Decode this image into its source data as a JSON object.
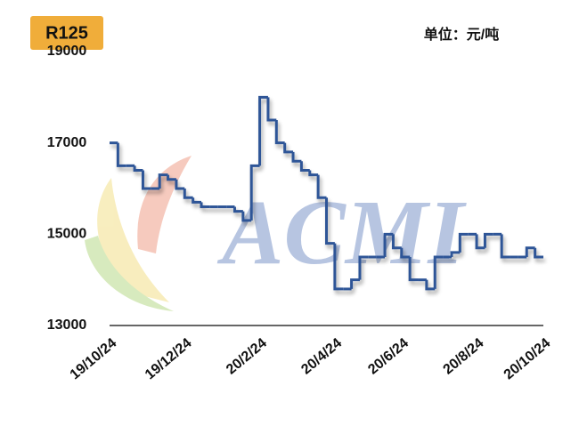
{
  "chart_data": {
    "type": "step",
    "title": "R125",
    "unit": "单位：元/吨",
    "watermark": "ACMI",
    "categories": [
      "19/10/24",
      null,
      null,
      null,
      null,
      null,
      null,
      null,
      null,
      "19/12/24",
      null,
      null,
      null,
      null,
      null,
      null,
      null,
      null,
      "20/2/24",
      null,
      null,
      null,
      null,
      null,
      null,
      null,
      null,
      "20/4/24",
      null,
      null,
      null,
      null,
      null,
      null,
      null,
      "20/6/24",
      null,
      null,
      null,
      null,
      null,
      null,
      null,
      null,
      "20/8/24",
      null,
      null,
      null,
      null,
      null,
      null,
      null,
      "20/10/24"
    ],
    "series": [
      {
        "name": "R125",
        "color": "#2e5597",
        "values": [
          17000,
          16500,
          16500,
          16400,
          16000,
          16000,
          16300,
          16200,
          16000,
          15800,
          15700,
          15600,
          15600,
          15600,
          15600,
          15500,
          15300,
          16500,
          18000,
          17500,
          17000,
          16800,
          16600,
          16400,
          16300,
          15800,
          14800,
          13800,
          13800,
          14000,
          14500,
          14500,
          14500,
          15000,
          14700,
          14500,
          14000,
          14000,
          13800,
          14500,
          14500,
          14600,
          15000,
          15000,
          14700,
          15000,
          15000,
          14500,
          14500,
          14500,
          14700,
          14500,
          14500
        ]
      }
    ],
    "ylim": [
      13000,
      19000
    ],
    "yticks": [
      13000,
      15000,
      17000,
      19000
    ]
  }
}
